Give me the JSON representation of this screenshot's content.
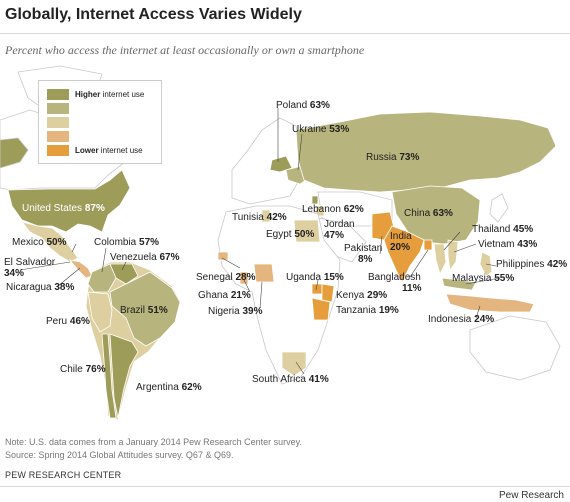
{
  "header": {
    "title": "Globally, Internet Access Varies Widely",
    "subtitle": "Percent who access the internet at least occasionally or own a smartphone"
  },
  "legend": {
    "high_label": "Higher",
    "high_suffix": " internet use",
    "low_label": "Lower",
    "low_suffix": " internet use",
    "colors": [
      "#9d9c59",
      "#b7b47d",
      "#ddcf9f",
      "#e5b57f",
      "#e69e3c"
    ]
  },
  "colors": {
    "ocean": "#ffffff",
    "no_data": "#ffffff",
    "border": "#c8c8c8",
    "tier1": "#9d9c59",
    "tier2": "#b7b47d",
    "tier3": "#ddcf9f",
    "tier4": "#e5b57f",
    "tier5": "#e69e3c"
  },
  "countries": [
    {
      "id": "poland",
      "name": "Poland",
      "pct": "63%"
    },
    {
      "id": "ukraine",
      "name": "Ukraine",
      "pct": "53%"
    },
    {
      "id": "russia",
      "name": "Russia",
      "pct": "73%"
    },
    {
      "id": "united-states",
      "name": "United States",
      "pct": "87%"
    },
    {
      "id": "tunisia",
      "name": "Tunisia",
      "pct": "42%"
    },
    {
      "id": "lebanon",
      "name": "Lebanon",
      "pct": "62%"
    },
    {
      "id": "jordan",
      "name": "Jordan",
      "pct": "47%"
    },
    {
      "id": "egypt",
      "name": "Egypt",
      "pct": "50%"
    },
    {
      "id": "china",
      "name": "China",
      "pct": "63%"
    },
    {
      "id": "thailand",
      "name": "Thailand",
      "pct": "45%"
    },
    {
      "id": "mexico",
      "name": "Mexico",
      "pct": "50%"
    },
    {
      "id": "colombia",
      "name": "Colombia",
      "pct": "57%"
    },
    {
      "id": "venezuela",
      "name": "Venezuela",
      "pct": "67%"
    },
    {
      "id": "el-salvador",
      "name": "El Salvador",
      "pct": "34%"
    },
    {
      "id": "nicaragua",
      "name": "Nicaragua",
      "pct": "38%"
    },
    {
      "id": "india",
      "name": "India",
      "pct": "20%"
    },
    {
      "id": "pakistan",
      "name": "Pakistan",
      "pct": "8%"
    },
    {
      "id": "vietnam",
      "name": "Vietnam",
      "pct": "43%"
    },
    {
      "id": "senegal",
      "name": "Senegal",
      "pct": "28%"
    },
    {
      "id": "uganda",
      "name": "Uganda",
      "pct": "15%"
    },
    {
      "id": "bangladesh",
      "name": "Bangladesh",
      "pct": "11%"
    },
    {
      "id": "philippines",
      "name": "Philippines",
      "pct": "42%"
    },
    {
      "id": "brazil",
      "name": "Brazil",
      "pct": "51%"
    },
    {
      "id": "ghana",
      "name": "Ghana",
      "pct": "21%"
    },
    {
      "id": "kenya",
      "name": "Kenya",
      "pct": "29%"
    },
    {
      "id": "malaysia",
      "name": "Malaysia",
      "pct": "55%"
    },
    {
      "id": "peru",
      "name": "Peru",
      "pct": "46%"
    },
    {
      "id": "nigeria",
      "name": "Nigeria",
      "pct": "39%"
    },
    {
      "id": "tanzania",
      "name": "Tanzania",
      "pct": "19%"
    },
    {
      "id": "indonesia",
      "name": "Indonesia",
      "pct": "24%"
    },
    {
      "id": "chile",
      "name": "Chile",
      "pct": "76%"
    },
    {
      "id": "argentina",
      "name": "Argentina",
      "pct": "62%"
    },
    {
      "id": "south-africa",
      "name": "South Africa",
      "pct": "41%"
    }
  ],
  "notes": {
    "note": "Note: U.S. data comes from a January 2014 Pew Research Center survey.",
    "source": "Source: Spring 2014 Global Attitudes survey. Q67 & Q69.",
    "org": "PEW RESEARCH CENTER",
    "credit": "Pew Research"
  }
}
